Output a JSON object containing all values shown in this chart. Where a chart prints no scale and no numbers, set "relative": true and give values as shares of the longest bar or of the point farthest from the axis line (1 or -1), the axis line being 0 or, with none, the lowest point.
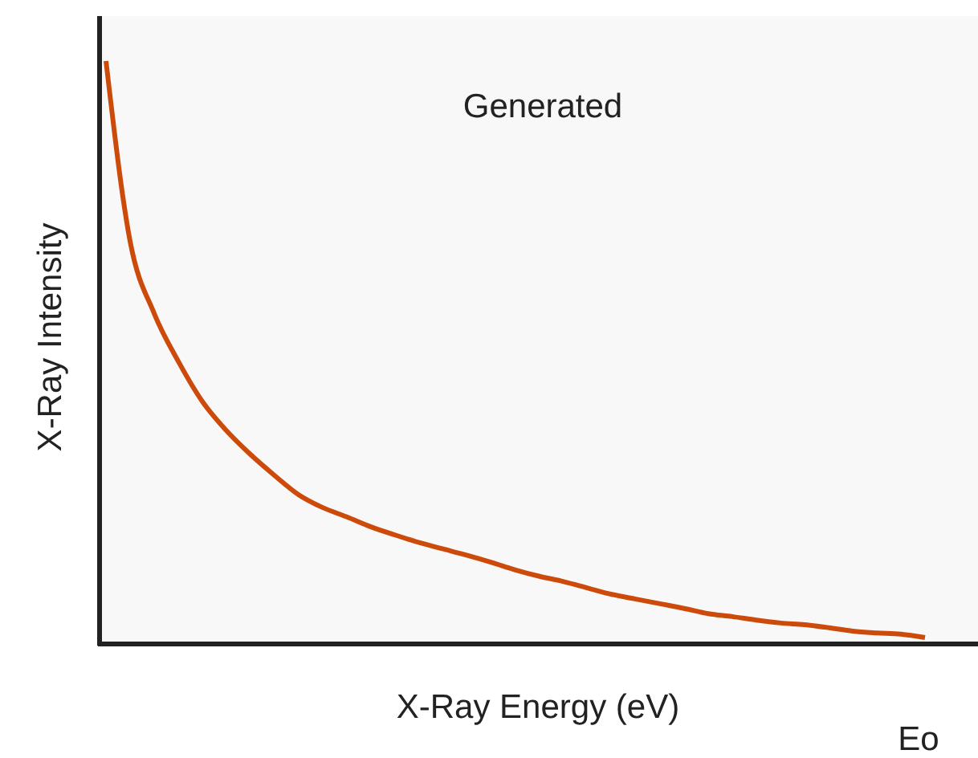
{
  "chart_data": {
    "type": "line",
    "title": "Generated",
    "xlabel": "X-Ray Energy (eV)",
    "ylabel": "X-Ray Intensity",
    "annotations": [
      "Eo"
    ],
    "relative": true,
    "categories": [
      null,
      null,
      null,
      null,
      null,
      null,
      null,
      null,
      null,
      null,
      null,
      null,
      null,
      null,
      null,
      null,
      null,
      null,
      null,
      null,
      null,
      null,
      null,
      null,
      null,
      null,
      null,
      null,
      null,
      null,
      null,
      null,
      null,
      null,
      null
    ],
    "series": [
      {
        "color": "#cc4a0a",
        "values": [
          1,
          0.691,
          0.567,
          0.485,
          0.416,
          0.366,
          0.325,
          0.289,
          0.256,
          0.234,
          0.218,
          0.201,
          0.187,
          0.174,
          0.163,
          0.152,
          0.14,
          0.127,
          0.116,
          0.107,
          0.096,
          0.085,
          0.077,
          0.069,
          0.061,
          0.052,
          0.047,
          0.041,
          0.036,
          0.033,
          0.028,
          0.022,
          0.019,
          0.017,
          0.011
        ]
      }
    ]
  }
}
